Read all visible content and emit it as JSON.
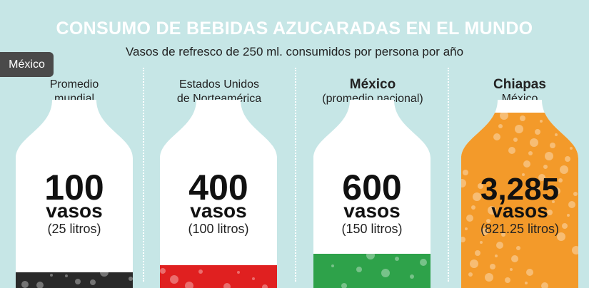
{
  "title": "CONSUMO DE BEBIDAS AZUCARADAS EN EL MUNDO",
  "subtitle": "Vasos de refresco de 250 ml. consumidos por persona por año",
  "tag_label": "México",
  "colors": {
    "background": "#c6e6e6",
    "mundial_liquid": "#2a2a2a",
    "usa_liquid": "#e02020",
    "mexico_liquid": "#2ea24a",
    "chiapas_liquid": "#f39a2a",
    "bottle": "#ffffff"
  },
  "chart_data": {
    "type": "bar",
    "title": "CONSUMO DE BEBIDAS AZUCARADAS EN EL MUNDO",
    "subtitle": "Vasos de refresco de 250 ml. consumidos por persona por año",
    "categories": [
      "Promedio mundial",
      "Estados Unidos de Norteamérica",
      "México (promedio nacional)",
      "Chiapas México"
    ],
    "series": [
      {
        "values": [
          100,
          400,
          600,
          3285
        ]
      }
    ],
    "bars": [
      {
        "heading_main": "Promedio",
        "heading_sub": "mundial",
        "heading_bold": false,
        "value": 100,
        "value_label": "100",
        "unit": "vasos",
        "liters_label": "(25 litros)",
        "liters": 25,
        "liquid_color": "#2a2a2a"
      },
      {
        "heading_main": "Estados Unidos",
        "heading_sub": "de Norteamérica",
        "heading_bold": false,
        "value": 400,
        "value_label": "400",
        "unit": "vasos",
        "liters_label": "(100 litros)",
        "liters": 100,
        "liquid_color": "#e02020"
      },
      {
        "heading_main": "México",
        "heading_sub": "(promedio nacional)",
        "heading_bold": true,
        "value": 600,
        "value_label": "600",
        "unit": "vasos",
        "liters_label": "(150 litros)",
        "liters": 150,
        "liquid_color": "#2ea24a"
      },
      {
        "heading_main": "Chiapas",
        "heading_sub": "México",
        "heading_bold": true,
        "value": 3285,
        "value_label": "3,285",
        "unit": "vasos",
        "liters_label": "(821.25 litros)",
        "liters": 821.25,
        "liquid_color": "#f39a2a"
      }
    ],
    "fill_max": 3285
  }
}
